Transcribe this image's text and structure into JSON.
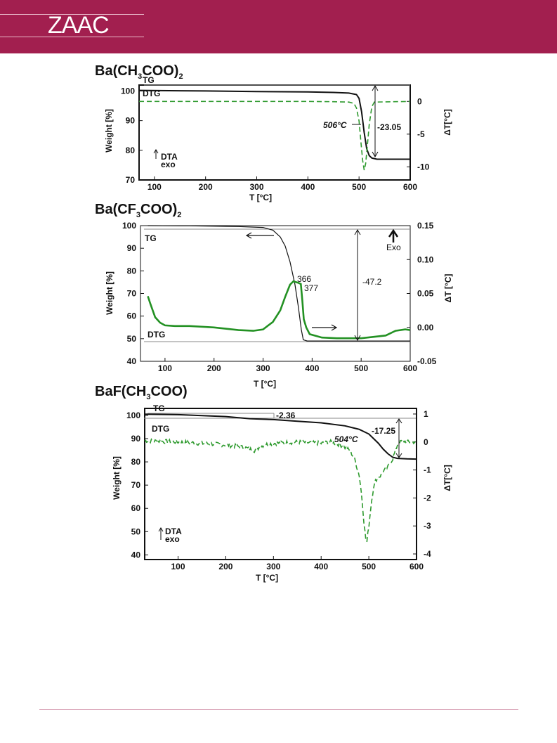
{
  "header": {
    "logo": "ZAAC",
    "background": "#a21f4f"
  },
  "colors": {
    "tg": "#111111",
    "dtg": "#2e9a2e",
    "dtg_solid": "#239123"
  },
  "chart_data": [
    {
      "type": "line",
      "compound": "Ba(CH3COO)2",
      "xlabel": "T [°C]",
      "ylabel": "Weight  [%]",
      "y2label": "ΔT[°C]",
      "xlim": [
        70,
        600
      ],
      "ylim": [
        70,
        102
      ],
      "y2lim": [
        -12,
        2.5
      ],
      "xticks": [
        "100",
        "200",
        "300",
        "400",
        "500",
        "600"
      ],
      "yticks": [
        "70",
        "80",
        "90",
        "100"
      ],
      "y2ticks": [
        "-10",
        "-5",
        "0"
      ],
      "series": [
        {
          "name": "TG",
          "axis": "left",
          "style": "solid",
          "x": [
            70,
            200,
            300,
            400,
            450,
            480,
            495,
            500,
            505,
            510,
            515,
            520,
            525,
            535,
            560,
            600
          ],
          "y": [
            100.2,
            100.0,
            99.8,
            99.7,
            99.5,
            99.3,
            98.8,
            97.5,
            93.0,
            86.0,
            80.5,
            78.2,
            77.4,
            77.0,
            77.0,
            77.0
          ]
        },
        {
          "name": "DTG",
          "axis": "right",
          "style": "dashed",
          "x": [
            70,
            200,
            300,
            400,
            450,
            480,
            490,
            495,
            500,
            504,
            507,
            510,
            513,
            516,
            520,
            525,
            530,
            600
          ],
          "y": [
            0,
            0,
            0,
            0,
            -0.05,
            -0.1,
            -0.3,
            -1.0,
            -3.0,
            -6.5,
            -9.0,
            -10.5,
            -9.5,
            -7.0,
            -3.5,
            -0.8,
            -0.1,
            0
          ]
        }
      ],
      "annotations": {
        "tg_label": "TG",
        "dtg_label": "DTG",
        "temp": "506°C",
        "loss": "-23.05",
        "dta1": "DTA",
        "dta2": "exo"
      }
    },
    {
      "type": "line",
      "compound": "Ba(CF3COO)2",
      "xlabel": "T [°C]",
      "ylabel": "Weight [%]",
      "y2label": "ΔT [°C]",
      "xlim": [
        50,
        600
      ],
      "ylim": [
        40,
        100
      ],
      "y2lim": [
        -0.05,
        0.15
      ],
      "xticks": [
        "100",
        "200",
        "300",
        "400",
        "500",
        "600"
      ],
      "yticks": [
        "40",
        "50",
        "60",
        "70",
        "80",
        "90",
        "100"
      ],
      "y2ticks": [
        "-0.05",
        "0.00",
        "0.05",
        "0.10",
        "0.15"
      ],
      "series": [
        {
          "name": "TG",
          "axis": "left",
          "style": "solid",
          "x": [
            65,
            150,
            250,
            300,
            320,
            335,
            345,
            355,
            365,
            372,
            378,
            382,
            390,
            450,
            600
          ],
          "y": [
            100,
            99.9,
            99.6,
            99.2,
            98.0,
            95.0,
            91.0,
            84.0,
            74.0,
            64.0,
            54.0,
            49.5,
            49.0,
            49.0,
            49.0
          ]
        },
        {
          "name": "DTG",
          "axis": "right",
          "style": "solid",
          "x": [
            65,
            70,
            80,
            90,
            100,
            120,
            150,
            200,
            250,
            280,
            300,
            320,
            335,
            345,
            355,
            362,
            366,
            371,
            377,
            380,
            383,
            388,
            395,
            420,
            450,
            500,
            550,
            570,
            590,
            600
          ],
          "y": [
            0.046,
            0.035,
            0.015,
            0.007,
            0.003,
            0.002,
            0.002,
            0.0,
            -0.004,
            -0.005,
            -0.003,
            0.008,
            0.025,
            0.045,
            0.063,
            0.068,
            0.067,
            0.066,
            0.064,
            0.04,
            0.012,
            0.0,
            -0.01,
            -0.015,
            -0.016,
            -0.016,
            -0.012,
            -0.005,
            -0.003,
            -0.004
          ]
        }
      ],
      "annotations": {
        "tg_label": "TG",
        "dtg_label": "DTG",
        "t1": "366",
        "t2": "377",
        "loss": "-47.2",
        "exo": "Exo"
      }
    },
    {
      "type": "line",
      "compound": "BaF(CH3COO)",
      "xlabel": "T [°C]",
      "ylabel": "Weight [%]",
      "y2label": "ΔT[°C]",
      "xlim": [
        30,
        600
      ],
      "ylim": [
        38,
        103
      ],
      "y2lim": [
        -4.2,
        1.2
      ],
      "xticks": [
        "100",
        "200",
        "300",
        "400",
        "500",
        "600"
      ],
      "yticks": [
        "40",
        "50",
        "60",
        "70",
        "80",
        "90",
        "100"
      ],
      "y2ticks": [
        "-4",
        "-3",
        "-2",
        "-1",
        "0",
        "1"
      ],
      "series": [
        {
          "name": "TG",
          "axis": "left",
          "style": "solid",
          "x": [
            30,
            100,
            200,
            250,
            300,
            350,
            400,
            450,
            480,
            500,
            510,
            520,
            530,
            540,
            550,
            560,
            580,
            600
          ],
          "y": [
            100.5,
            100.3,
            99.5,
            98.6,
            98.2,
            97.5,
            96.8,
            95.5,
            94.0,
            92.0,
            90.0,
            88.0,
            85.5,
            83.5,
            82.0,
            81.5,
            81.3,
            81.2
          ]
        },
        {
          "name": "DTG",
          "axis": "right",
          "style": "dashed",
          "x": [
            30,
            100,
            150,
            200,
            220,
            240,
            260,
            280,
            300,
            350,
            400,
            420,
            440,
            460,
            470,
            480,
            485,
            490,
            495,
            500,
            505,
            510,
            515,
            520,
            525,
            530,
            540,
            550,
            560,
            570,
            580,
            600
          ],
          "y": [
            0.05,
            0.0,
            -0.05,
            -0.1,
            -0.15,
            -0.2,
            -0.3,
            -0.1,
            -0.05,
            0.0,
            -0.05,
            0.0,
            -0.1,
            -0.3,
            -0.6,
            -1.2,
            -1.9,
            -2.9,
            -3.7,
            -3.0,
            -2.2,
            -1.6,
            -1.35,
            -1.25,
            -1.2,
            -1.05,
            -0.9,
            -0.6,
            -0.1,
            0.05,
            0.0,
            0.0
          ]
        }
      ],
      "annotations": {
        "tg_label": "TG",
        "dtg_label": "DTG",
        "loss1": "-2.36",
        "temp": "504°C",
        "loss2": "-17.25",
        "dta1": "DTA",
        "dta2": "exo"
      }
    }
  ]
}
